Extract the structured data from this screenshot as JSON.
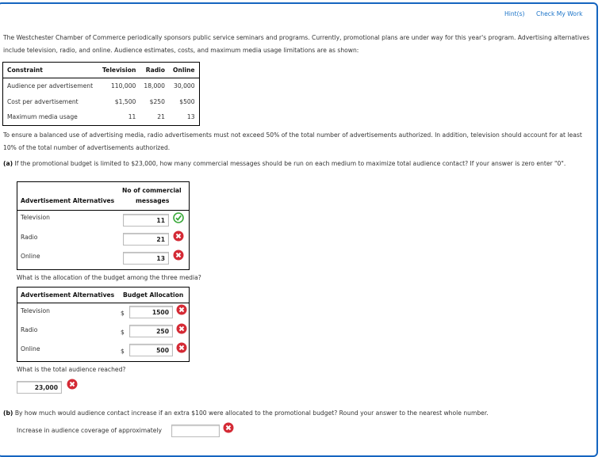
{
  "header": {
    "hints_label": "Hint(s)",
    "check_label": "Check My Work"
  },
  "intro": "The Westchester Chamber of Commerce periodically sponsors public service seminars and programs. Currently, promotional plans are under way for this year's program. Advertising alternatives include television, radio, and online. Audience estimates, costs, and maximum media usage limitations are as shown:",
  "constraint_table": {
    "headers": [
      "Constraint",
      "Television",
      "Radio",
      "Online"
    ],
    "rows": [
      [
        "Audience per advertisement",
        "110,000",
        "18,000",
        "30,000"
      ],
      [
        "Cost per advertisement",
        "$1,500",
        "$250",
        "$500"
      ],
      [
        "Maximum media usage",
        "11",
        "21",
        "13"
      ]
    ]
  },
  "balance_text": "To ensure a balanced use of advertising media, radio advertisements must not exceed 50% of the total number of advertisements authorized. In addition, television should account for at least 10% of the total number of advertisements authorized.",
  "part_a": {
    "label": "(a)",
    "question": "If the promotional budget is limited to $23,000, how many commercial messages should be run on each medium to maximize total audience contact? If your answer is zero enter \"0\".",
    "messages_table": {
      "col1": "Advertisement Alternatives",
      "col2_line1": "No of commercial",
      "col2_line2": "messages",
      "rows": [
        {
          "label": "Television",
          "value": "11",
          "status": "correct"
        },
        {
          "label": "Radio",
          "value": "21",
          "status": "incorrect"
        },
        {
          "label": "Online",
          "value": "13",
          "status": "incorrect"
        }
      ]
    },
    "allocation_question": "What is the allocation of the budget among the three media?",
    "allocation_table": {
      "col1": "Advertisement Alternatives",
      "col2": "Budget Allocation",
      "currency": "$",
      "rows": [
        {
          "label": "Television",
          "value": "1500",
          "status": "incorrect"
        },
        {
          "label": "Radio",
          "value": "250",
          "status": "incorrect"
        },
        {
          "label": "Online",
          "value": "500",
          "status": "incorrect"
        }
      ]
    },
    "audience_question": "What is the total audience reached?",
    "audience_value": "23,000",
    "audience_status": "incorrect"
  },
  "part_b": {
    "label": "(b)",
    "question": "By how much would audience contact increase if an extra $100 were allocated to the promotional budget? Round your answer to the nearest whole number.",
    "prompt": "Increase in audience coverage of approximately",
    "value": "",
    "status": "incorrect"
  },
  "colors": {
    "frame": "#1565c0",
    "link": "#1a73c8",
    "correct": "#3aa93a",
    "incorrect": "#d42a35"
  }
}
